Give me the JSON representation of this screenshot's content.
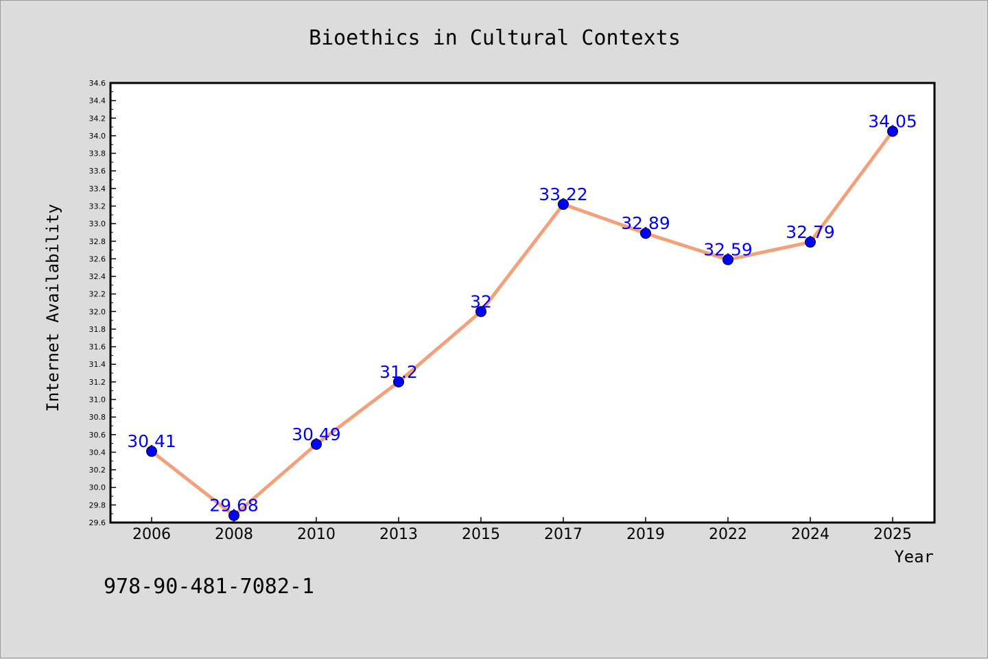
{
  "chart_data": {
    "type": "line",
    "title": "Bioethics in Cultural Contexts",
    "xlabel": "Year",
    "ylabel": "Internet Availability",
    "categories": [
      "2006",
      "2008",
      "2010",
      "2013",
      "2015",
      "2017",
      "2019",
      "2022",
      "2024",
      "2025"
    ],
    "series": [
      {
        "values": [
          30.41,
          29.68,
          30.49,
          31.2,
          32,
          33.22,
          32.89,
          32.59,
          32.79,
          34.05
        ],
        "labels": [
          "30.41",
          "29.68",
          "30.49",
          "31.2",
          "32",
          "33.22",
          "32.89",
          "32.59",
          "32.79",
          "34.05"
        ],
        "line_color": "#f4a07a",
        "marker_color": "#0000ff",
        "label_color": "#0000ff"
      }
    ],
    "ylim": [
      29.6,
      34.6
    ],
    "yticks": [
      "29.6",
      "29.8",
      "30.0",
      "30.2",
      "30.4",
      "30.6",
      "30.8",
      "31.0",
      "31.2",
      "31.4",
      "31.6",
      "31.8",
      "32.0",
      "32.2",
      "32.4",
      "32.6",
      "32.8",
      "33.0",
      "33.2",
      "33.4",
      "33.6",
      "33.8",
      "34.0",
      "34.2",
      "34.4",
      "34.6"
    ],
    "grid": false,
    "legend": "none"
  },
  "annotation": "978-90-481-7082-1",
  "colors": {
    "background": "#dcdcdc",
    "plot_background": "#ffffff",
    "axis": "#000000"
  }
}
